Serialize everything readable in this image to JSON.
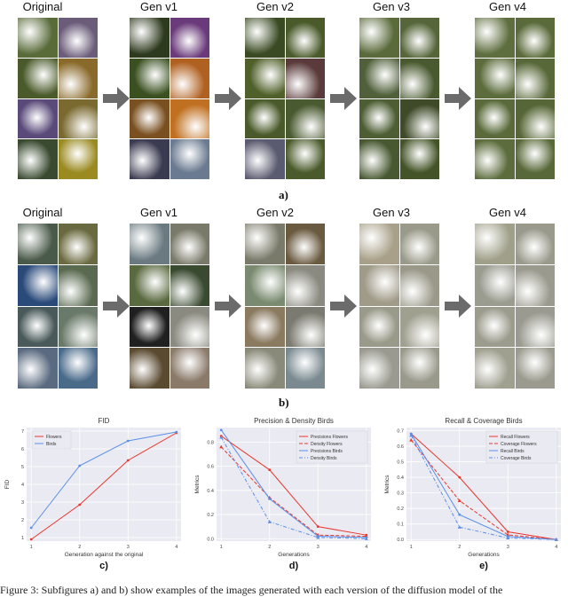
{
  "row_a": {
    "labels": [
      "Original",
      "Gen v1",
      "Gen v2",
      "Gen v3",
      "Gen v4"
    ],
    "panel": "a)",
    "cells": [
      [
        "#5a6b3a",
        "#6b5d7a",
        "#4a5a2a",
        "#8a6a2a",
        "#5a4a7a",
        "#7a6a30",
        "#3a4a30",
        "#9a8a20"
      ],
      [
        "#2e3a1e",
        "#6a3a7a",
        "#3a5020",
        "#b06020",
        "#7a5020",
        "#c07020",
        "#3a3a50",
        "#6a7a90"
      ],
      [
        "#3a4a22",
        "#4a5a2a",
        "#50602a",
        "#5a3a3a",
        "#4a5a2a",
        "#4a5a30",
        "#5a5a70",
        "#4a5a2a"
      ],
      [
        "#5a6a3a",
        "#56663a",
        "#50603a",
        "#4a5a30",
        "#4e5e34",
        "#3e4a28",
        "#485830",
        "#445428"
      ],
      [
        "#5e6e3e",
        "#5a6a3a",
        "#5c6c3c",
        "#586838",
        "#5a6a3a",
        "#566636",
        "#5c6c3c",
        "#586838"
      ]
    ]
  },
  "row_b": {
    "labels": [
      "Original",
      "Gen v1",
      "Gen v2",
      "Gen v3",
      "Gen v4"
    ],
    "panel": "b)",
    "cells": [
      [
        "#4a5a4a",
        "#6a6a40",
        "#2a4a7a",
        "#5a6a50",
        "#4a5a5a",
        "#6a7a6a",
        "#5a6a80",
        "#4a6a8a"
      ],
      [
        "#6a7a80",
        "#7a7a6a",
        "#5a6a40",
        "#3a4a30",
        "#202020",
        "#8a8a80",
        "#5a4a30",
        "#8a7a6a"
      ],
      [
        "#7a7a6a",
        "#6a5a40",
        "#7a8a70",
        "#8a8a80",
        "#8a7a60",
        "#7a7a70",
        "#8a8a7a",
        "#7a8a90"
      ],
      [
        "#a8a088",
        "#9a9a8a",
        "#a09a88",
        "#9a9888",
        "#9a9a8a",
        "#a0a090",
        "#9a9a90",
        "#9a9a8c"
      ],
      [
        "#a0a08a",
        "#9a9a8c",
        "#9a9c90",
        "#9a9a8e",
        "#9c9c8e",
        "#9a9a90",
        "#a0a090",
        "#9a9a8e"
      ]
    ]
  },
  "chart_data": [
    {
      "type": "line",
      "title": "FID",
      "xlabel": "Generation against the original",
      "ylabel": "FID",
      "x": [
        1,
        2,
        3,
        4
      ],
      "xticks": [
        "1",
        "2",
        "3",
        "4"
      ],
      "yticks": [
        "1",
        "2",
        "3",
        "4",
        "5",
        "6",
        "7"
      ],
      "ylim": [
        0.8,
        7.2
      ],
      "legend": "top-left",
      "series": [
        {
          "name": "Flowers",
          "values": [
            0.9,
            2.85,
            5.35,
            6.9
          ],
          "color": "#e8382c",
          "dash": "solid",
          "marker": "dot"
        },
        {
          "name": "Birds",
          "values": [
            1.55,
            5.05,
            6.45,
            6.95
          ],
          "color": "#5a8fe8",
          "dash": "solid",
          "marker": "dot"
        }
      ],
      "panel": "c)"
    },
    {
      "type": "line",
      "title": "Precision & Density Birds",
      "xlabel": "Generations",
      "ylabel": "Metrics",
      "x": [
        1,
        2,
        3,
        4
      ],
      "xticks": [
        "1",
        "2",
        "3",
        "4"
      ],
      "yticks": [
        "0.0",
        "0.2",
        "0.4",
        "0.6",
        "0.8"
      ],
      "ylim": [
        -0.02,
        0.92
      ],
      "legend": "top-right",
      "series": [
        {
          "name": "Precisions Flowers",
          "values": [
            0.85,
            0.57,
            0.1,
            0.03
          ],
          "color": "#e8382c",
          "dash": "solid",
          "marker": "dot"
        },
        {
          "name": "Density Flowers",
          "values": [
            0.76,
            0.34,
            0.03,
            0.02
          ],
          "color": "#e8382c",
          "dash": "dash",
          "marker": "triangle"
        },
        {
          "name": "Precisions Birds",
          "values": [
            0.9,
            0.33,
            0.02,
            0.01
          ],
          "color": "#5a8fe8",
          "dash": "solid",
          "marker": "dot"
        },
        {
          "name": "Density Birds",
          "values": [
            0.84,
            0.14,
            0.01,
            0.0
          ],
          "color": "#5a8fe8",
          "dash": "dashdot",
          "marker": "triangle"
        }
      ],
      "panel": "d)"
    },
    {
      "type": "line",
      "title": "Recall & Coverage Birds",
      "xlabel": "Generations",
      "ylabel": "Metrics",
      "x": [
        1,
        2,
        3,
        4
      ],
      "xticks": [
        "1",
        "2",
        "3",
        "4"
      ],
      "yticks": [
        "0.0",
        "0.1",
        "0.2",
        "0.3",
        "0.4",
        "0.5",
        "0.6",
        "0.7"
      ],
      "ylim": [
        -0.01,
        0.72
      ],
      "legend": "top-right",
      "series": [
        {
          "name": "Recall Flowers",
          "values": [
            0.68,
            0.4,
            0.05,
            0.0
          ],
          "color": "#e8382c",
          "dash": "solid",
          "marker": "dot"
        },
        {
          "name": "Coverage Flowers",
          "values": [
            0.64,
            0.25,
            0.03,
            0.0
          ],
          "color": "#e8382c",
          "dash": "dash",
          "marker": "triangle"
        },
        {
          "name": "Recall Birds",
          "values": [
            0.68,
            0.16,
            0.02,
            0.0
          ],
          "color": "#5a8fe8",
          "dash": "solid",
          "marker": "dot"
        },
        {
          "name": "Coverage Birds",
          "values": [
            0.67,
            0.08,
            0.01,
            0.0
          ],
          "color": "#5a8fe8",
          "dash": "dashdot",
          "marker": "triangle"
        }
      ],
      "panel": "e)"
    }
  ],
  "caption": "Figure 3: Subfigures a) and b) show examples of the images generated with each version of the diffusion model of the"
}
